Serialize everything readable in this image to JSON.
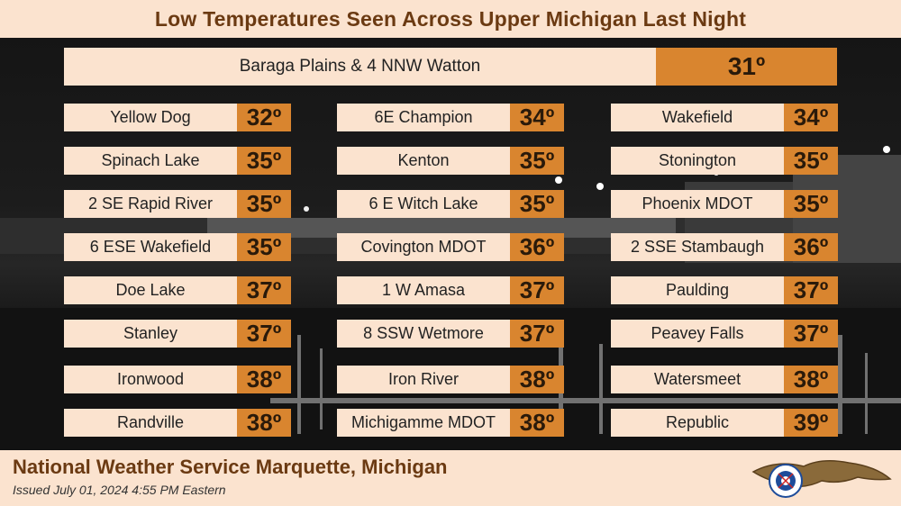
{
  "title": "Low Temperatures Seen Across Upper Michigan Last Night",
  "top": {
    "name": "Baraga Plains & 4 NNW Watton",
    "temp": "31º"
  },
  "columns": [
    [
      {
        "name": "Yellow Dog",
        "temp": "32º"
      },
      {
        "name": "Spinach Lake",
        "temp": "35º"
      },
      {
        "name": "2 SE Rapid River",
        "temp": "35º"
      },
      {
        "name": "6 ESE Wakefield",
        "temp": "35º"
      },
      {
        "name": "Doe Lake",
        "temp": "37º"
      },
      {
        "name": "Stanley",
        "temp": "37º"
      },
      {
        "name": "Ironwood",
        "temp": "38º"
      },
      {
        "name": "Randville",
        "temp": "38º"
      }
    ],
    [
      {
        "name": "6E Champion",
        "temp": "34º"
      },
      {
        "name": "Kenton",
        "temp": "35º"
      },
      {
        "name": "6 E Witch Lake",
        "temp": "35º"
      },
      {
        "name": "Covington MDOT",
        "temp": "36º"
      },
      {
        "name": "1 W Amasa",
        "temp": "37º"
      },
      {
        "name": "8 SSW Wetmore",
        "temp": "37º"
      },
      {
        "name": "Iron River",
        "temp": "38º"
      },
      {
        "name": "Michigamme MDOT",
        "temp": "38º"
      }
    ],
    [
      {
        "name": "Wakefield",
        "temp": "34º"
      },
      {
        "name": "Stonington",
        "temp": "35º"
      },
      {
        "name": "Phoenix MDOT",
        "temp": "35º"
      },
      {
        "name": "2 SSE Stambaugh",
        "temp": "36º"
      },
      {
        "name": "Paulding",
        "temp": "37º"
      },
      {
        "name": "Peavey Falls",
        "temp": "37º"
      },
      {
        "name": "Watersmeet",
        "temp": "38º"
      },
      {
        "name": "Republic",
        "temp": "39º"
      }
    ]
  ],
  "footer": {
    "org": "National Weather Service Marquette, Michigan",
    "issued": "Issued  July 01, 2024 4:55 PM Eastern"
  },
  "colors": {
    "accent": "#d9852f",
    "panel": "#fbe3cf",
    "title": "#6b3a12"
  },
  "logo_icon": "nws-logo-icon"
}
